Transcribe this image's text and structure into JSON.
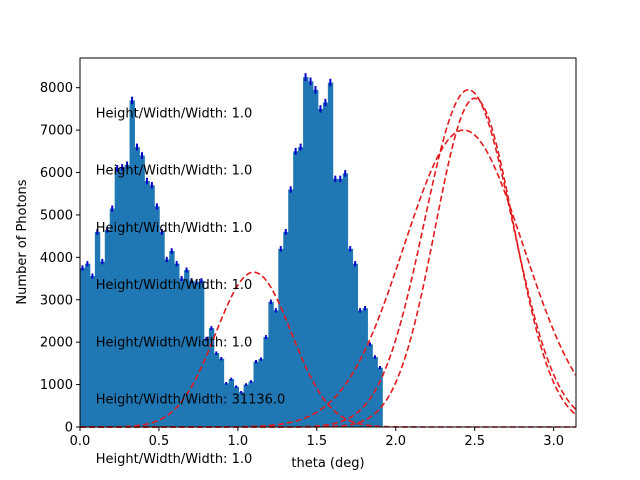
{
  "chart_data": {
    "type": "bar",
    "xlabel": "theta (deg)",
    "ylabel": "Number of Photons",
    "xlim": [
      0.0,
      3.1416
    ],
    "ylim": [
      0,
      8700
    ],
    "xticks": [
      "0.0",
      "0.5",
      "1.0",
      "1.5",
      "2.0",
      "2.5",
      "3.0"
    ],
    "xtick_values": [
      0.0,
      0.5,
      1.0,
      1.5,
      2.0,
      2.5,
      3.0
    ],
    "yticks": [
      "0",
      "1000",
      "2000",
      "3000",
      "4000",
      "5000",
      "6000",
      "7000",
      "8000"
    ],
    "ytick_values": [
      0,
      1000,
      2000,
      3000,
      4000,
      5000,
      6000,
      7000,
      8000
    ],
    "histogram": {
      "bin_width": 0.0314,
      "bin_start": 0.0,
      "color": "#1f77b4",
      "errorbar_color": "#0000cc",
      "values": [
        3750,
        3850,
        3560,
        4600,
        3900,
        4650,
        5150,
        6100,
        6120,
        6180,
        7700,
        6600,
        6400,
        5800,
        5700,
        5200,
        4600,
        3950,
        4150,
        3850,
        3500,
        3700,
        3450,
        3420,
        3450,
        2080,
        2330,
        1740,
        1610,
        1030,
        1130,
        950,
        820,
        1000,
        1070,
        1540,
        1600,
        2120,
        2950,
        2750,
        4200,
        4600,
        5600,
        6500,
        6600,
        8250,
        8150,
        7950,
        7500,
        7650,
        8120,
        5850,
        5850,
        5980,
        4200,
        3850,
        2750,
        2800,
        1950,
        1650,
        1400
      ]
    },
    "fit_curves": {
      "color": "#e41a1c",
      "style": "dashed",
      "curves": [
        {
          "center": 1.1,
          "amplitude": 3650,
          "sigma": 0.24
        },
        {
          "center": 2.43,
          "amplitude": 7000,
          "sigma": 0.38
        },
        {
          "center": 2.46,
          "amplitude": 7950,
          "sigma": 0.28
        },
        {
          "center": 2.5,
          "amplitude": 7750,
          "sigma": 0.25
        }
      ]
    },
    "annotations": [
      {
        "text": "Height/Width/Width: 1.0",
        "x": 0.1,
        "y": 7300
      },
      {
        "text": "Height/Width/Width: 1.0",
        "x": 0.1,
        "y": 5950
      },
      {
        "text": "Height/Width/Width: 1.0",
        "x": 0.1,
        "y": 4600
      },
      {
        "text": "Height/Width/Width: 1.0",
        "x": 0.1,
        "y": 3250
      },
      {
        "text": "Height/Width/Width: 1.0",
        "x": 0.1,
        "y": 1900
      },
      {
        "text": "Height/Width/Width: 31136.0",
        "x": 0.1,
        "y": 550
      },
      {
        "text": "Height/Width/Width: 1.0",
        "x": 0.1,
        "y": -850
      }
    ]
  }
}
